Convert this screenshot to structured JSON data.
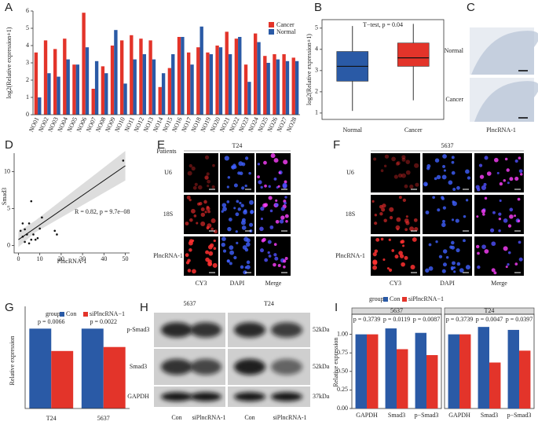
{
  "chart_data": [
    {
      "type": "bar",
      "label": "A",
      "x_label": "Patients",
      "y_label": "log2(Relative expression+1)",
      "categories": [
        "NO01",
        "NO02",
        "NO03",
        "NO04",
        "NO05",
        "NO06",
        "NO07",
        "NO08",
        "NO09",
        "NO10",
        "NO11",
        "NO12",
        "NO13",
        "NO14",
        "NO15",
        "NO16",
        "NO17",
        "NO18",
        "NO19",
        "NO20",
        "NO21",
        "NO22",
        "NO23",
        "NO24",
        "NO25",
        "NO26",
        "NO27",
        "NO28"
      ],
      "series": [
        {
          "name": "Cancer",
          "color": "#e3342a",
          "values": [
            3.6,
            4.3,
            3.8,
            4.4,
            2.9,
            5.9,
            1.5,
            2.8,
            4.0,
            4.3,
            4.6,
            4.4,
            4.3,
            1.6,
            2.7,
            4.5,
            3.6,
            3.9,
            3.6,
            4.0,
            4.8,
            4.4,
            2.9,
            4.7,
            3.4,
            3.5,
            3.5,
            3.3
          ]
        },
        {
          "name": "Normal",
          "color": "#2a5aa6",
          "values": [
            1.0,
            2.4,
            2.2,
            3.2,
            2.9,
            3.9,
            3.1,
            2.4,
            4.9,
            1.8,
            3.2,
            3.5,
            3.2,
            2.4,
            3.5,
            4.5,
            2.9,
            5.1,
            3.5,
            3.9,
            3.5,
            4.5,
            1.9,
            4.2,
            3.0,
            3.2,
            3.1,
            3.1
          ]
        }
      ],
      "ylim": [
        0,
        6
      ],
      "yticks": [
        0,
        1,
        2,
        3,
        4,
        5,
        6
      ],
      "legend": "upper right"
    },
    {
      "type": "box",
      "label": "B",
      "y_label": "log2(Relative expression+1)",
      "annotation": "T−test, p = 0.04",
      "categories": [
        "Normal",
        "Cancer"
      ],
      "colors": [
        "#2a5aa6",
        "#e3342a"
      ],
      "boxes": [
        {
          "whislo": 1.1,
          "q1": 2.5,
          "med": 3.2,
          "q3": 3.9,
          "whishi": 5.1
        },
        {
          "whislo": 1.6,
          "q1": 3.2,
          "med": 3.6,
          "q3": 4.3,
          "whishi": 5.2
        }
      ],
      "ylim": [
        0.7,
        5.4
      ],
      "yticks": [
        1,
        2,
        3,
        4,
        5
      ]
    },
    {
      "type": "scatter",
      "label": "D",
      "x_label": "PlncRNA-1",
      "y_label": "Smad3",
      "annotation": "R = 0.82, p = 9.7e−08",
      "x": [
        49,
        6,
        11,
        5,
        1,
        2,
        3,
        5,
        7,
        8,
        9,
        17,
        18,
        4,
        2,
        10,
        3,
        6
      ],
      "y": [
        11.5,
        6,
        3.8,
        3,
        2,
        1.2,
        0.5,
        0.3,
        1.5,
        0.8,
        1,
        2,
        1.5,
        1.5,
        3,
        2.3,
        2.2,
        0.8
      ],
      "fit": {
        "x": [
          0,
          50
        ],
        "y": [
          0.8,
          10.8
        ]
      },
      "xlim": [
        -2,
        52
      ],
      "ylim": [
        -1,
        12.5
      ],
      "xticks": [
        0,
        10,
        20,
        30,
        40,
        50
      ],
      "yticks": [
        0,
        5,
        10
      ]
    },
    {
      "type": "bar",
      "label": "G",
      "y_label": "Relative expression",
      "legend_title": "group",
      "categories": [
        "T24",
        "5637"
      ],
      "series": [
        {
          "name": "Con",
          "color": "#2a5aa6",
          "values": [
            1,
            1
          ]
        },
        {
          "name": "siPlncRNA−1",
          "color": "#e3342a",
          "values": [
            0.72,
            0.77
          ]
        }
      ],
      "annotations": [
        "p = 0.0066",
        "p = 0.0022"
      ],
      "ylim": [
        0,
        1.2
      ],
      "yticks": []
    },
    {
      "type": "facet_bar",
      "label": "I",
      "y_label": "Relative expression",
      "legend_title": "group",
      "legend": [
        "Con",
        "siPlncRNA−1"
      ],
      "colors": [
        "#2a5aa6",
        "#e3342a"
      ],
      "facets": [
        {
          "title": "5637",
          "categories": [
            "GAPDH",
            "Smad3",
            "p−Smad3"
          ],
          "series": [
            {
              "values": [
                1,
                1.08,
                1.02
              ]
            },
            {
              "values": [
                1,
                0.8,
                0.72
              ]
            }
          ],
          "annotations": [
            "p = 0.3739",
            "p = 0.0119",
            "p = 0.0087"
          ]
        },
        {
          "title": "T24",
          "categories": [
            "GAPDH",
            "Smad3",
            "p−Smad3"
          ],
          "series": [
            {
              "values": [
                1,
                1.1,
                1.06
              ]
            },
            {
              "values": [
                1,
                0.62,
                0.78
              ]
            }
          ],
          "annotations": [
            "p = 0.3739",
            "p = 0.0047",
            "p = 0.0397"
          ]
        }
      ],
      "ylim": [
        0,
        1.25
      ],
      "yticks": [
        {
          "value": 0,
          "label": "0.00"
        },
        {
          "value": 0.25,
          "label": "0.25"
        },
        {
          "value": 0.5,
          "label": "0.50"
        },
        {
          "value": 0.75,
          "label": "0.75"
        },
        {
          "value": 1,
          "label": "1.00"
        }
      ]
    }
  ],
  "panel_C": {
    "label": "C",
    "rows": [
      "Normal",
      "Cancer"
    ],
    "caption": "PlncRNA-1"
  },
  "panel_E": {
    "label": "E",
    "title": "T24",
    "rows": [
      "U6",
      "18S",
      "PlncRNA-1"
    ],
    "columns": [
      "CY3",
      "DAPI",
      "Merge"
    ]
  },
  "panel_F": {
    "label": "F",
    "title": "5637",
    "rows": [
      "U6",
      "18S",
      "PlncRNA-1"
    ],
    "columns": [
      "CY3",
      "DAPI",
      "Merge"
    ]
  },
  "panel_H": {
    "label": "H",
    "cell_lines": [
      "5637",
      "T24"
    ],
    "rows": [
      "p-Smad3",
      "Smad3",
      "GAPDH"
    ],
    "sizes": [
      "52kDa",
      "52kDa",
      "37kDa"
    ],
    "lanes": [
      "Con",
      "siPlncRNA-1",
      "Con",
      "siPlncRNA-1"
    ]
  }
}
